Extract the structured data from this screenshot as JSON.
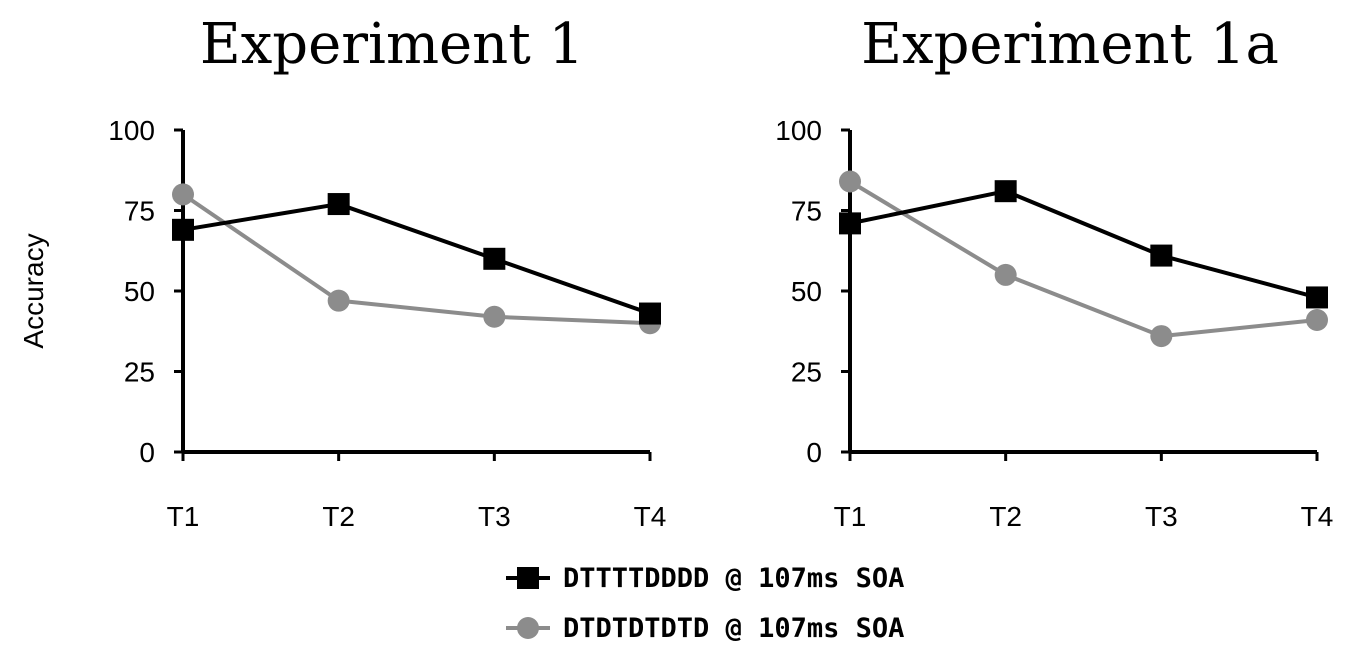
{
  "colors": {
    "series1": "#000000",
    "series2": "#8c8c8c",
    "axis": "#000000"
  },
  "legend": {
    "placement": "bottom-center",
    "entries": [
      {
        "label": "DTTTTDDDD @ 107ms SOA",
        "marker": "square"
      },
      {
        "label": "DTDTDTDTD @ 107ms SOA",
        "marker": "circle"
      }
    ]
  },
  "chart_data": [
    {
      "type": "line",
      "title": "Experiment 1",
      "ylabel": "Accuracy",
      "xlabel": "",
      "categories": [
        "T1",
        "T2",
        "T3",
        "T4"
      ],
      "ylim": [
        0,
        100
      ],
      "yticks": [
        "0",
        "25",
        "50",
        "75",
        "100"
      ],
      "grid": false,
      "series": [
        {
          "name": "DTTTTDDDD @ 107ms SOA",
          "marker": "square",
          "values": [
            69,
            77,
            60,
            43
          ]
        },
        {
          "name": "DTDTDTDTD @ 107ms SOA",
          "marker": "circle",
          "values": [
            80,
            47,
            42,
            40
          ]
        }
      ]
    },
    {
      "type": "line",
      "title": "Experiment 1a",
      "ylabel": "",
      "xlabel": "",
      "categories": [
        "T1",
        "T2",
        "T3",
        "T4"
      ],
      "ylim": [
        0,
        100
      ],
      "yticks": [
        "0",
        "25",
        "50",
        "75",
        "100"
      ],
      "grid": false,
      "series": [
        {
          "name": "DTTTTDDDD @ 107ms SOA",
          "marker": "square",
          "values": [
            71,
            81,
            61,
            48
          ]
        },
        {
          "name": "DTDTDTDTD @ 107ms SOA",
          "marker": "circle",
          "values": [
            84,
            55,
            36,
            41
          ]
        }
      ]
    }
  ]
}
